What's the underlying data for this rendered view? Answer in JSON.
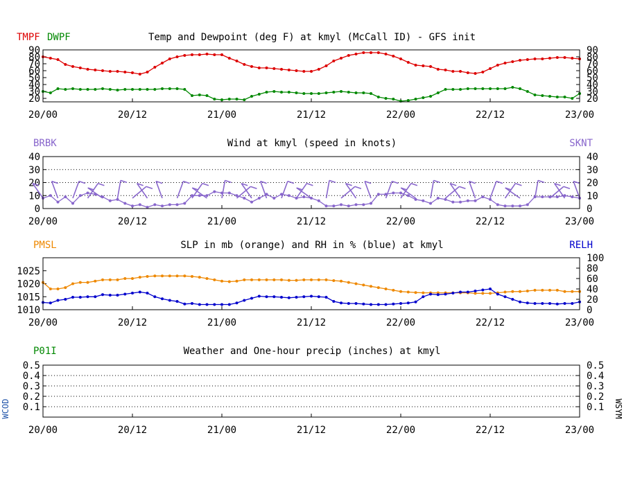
{
  "colors": {
    "tmpf": "#dd0000",
    "dwpf": "#008800",
    "wind": "#8866cc",
    "pmsl": "#ee8800",
    "relh": "#0000cc",
    "p01i": "#008800",
    "wcod": "#2255aa",
    "grid": "#000000"
  },
  "chart_data": [
    {
      "type": "line",
      "title": "Temp and Dewpoint (deg F) at kmyl  (McCall ID) - GFS init",
      "left_label_1": "TMPF",
      "left_label_2": "DWPF",
      "ylim": [
        15,
        90
      ],
      "yticks": [
        "20",
        "30",
        "40",
        "50",
        "60",
        "70",
        "80",
        "90"
      ],
      "xlim": [
        0,
        72
      ],
      "xticks": [
        "20/00",
        "20/12",
        "21/00",
        "21/12",
        "22/00",
        "22/12",
        "23/00"
      ],
      "x_hours": [
        0,
        1,
        2,
        3,
        4,
        5,
        6,
        7,
        8,
        9,
        10,
        11,
        12,
        13,
        14,
        15,
        16,
        17,
        18,
        19,
        20,
        21,
        22,
        23,
        24,
        25,
        26,
        27,
        28,
        29,
        30,
        31,
        32,
        33,
        34,
        35,
        36,
        37,
        38,
        39,
        40,
        41,
        42,
        43,
        44,
        45,
        46,
        47,
        48,
        49,
        50,
        51,
        52,
        53,
        54,
        55,
        56,
        57,
        58,
        59,
        60,
        61,
        62,
        63,
        64,
        65,
        66,
        67,
        68,
        69,
        70,
        71,
        72
      ],
      "series": [
        {
          "name": "TMPF",
          "values": [
            80,
            78,
            76,
            69,
            66,
            64,
            62,
            61,
            60,
            59,
            59,
            58,
            57,
            55,
            58,
            65,
            71,
            77,
            80,
            82,
            83,
            83,
            84,
            83,
            83,
            78,
            74,
            69,
            66,
            64,
            64,
            63,
            62,
            61,
            60,
            59,
            59,
            62,
            67,
            74,
            78,
            82,
            84,
            86,
            86,
            86,
            84,
            81,
            77,
            72,
            68,
            67,
            66,
            62,
            61,
            59,
            59,
            57,
            56,
            58,
            63,
            68,
            71,
            73,
            75,
            76,
            77,
            77,
            78,
            79,
            79,
            78,
            77
          ]
        },
        {
          "name": "DWPF",
          "values": [
            30,
            28,
            34,
            33,
            34,
            33,
            33,
            33,
            34,
            33,
            32,
            33,
            33,
            33,
            33,
            33,
            34,
            34,
            34,
            33,
            24,
            25,
            24,
            19,
            18,
            19,
            19,
            18,
            23,
            26,
            29,
            30,
            29,
            29,
            28,
            27,
            27,
            27,
            28,
            29,
            30,
            29,
            28,
            28,
            27,
            22,
            20,
            19,
            16,
            17,
            19,
            21,
            23,
            28,
            33,
            33,
            33,
            34,
            34,
            34,
            34,
            34,
            34,
            36,
            34,
            30,
            25,
            24,
            23,
            22,
            22,
            20,
            27
          ]
        }
      ]
    },
    {
      "type": "line",
      "title": "Wind at  kmyl  (speed in knots)",
      "left_label": "BRBK",
      "right_label": "SKNT",
      "ylim": [
        0,
        40
      ],
      "yticks": [
        "0",
        "10",
        "20",
        "30",
        "40"
      ],
      "xticks": [
        "20/00",
        "20/12",
        "21/00",
        "21/12",
        "22/00",
        "22/12",
        "23/00"
      ],
      "x_hours": [
        0,
        1,
        2,
        3,
        4,
        5,
        6,
        7,
        8,
        9,
        10,
        11,
        12,
        13,
        14,
        15,
        16,
        17,
        18,
        19,
        20,
        21,
        22,
        23,
        24,
        25,
        26,
        27,
        28,
        29,
        30,
        31,
        32,
        33,
        34,
        35,
        36,
        37,
        38,
        39,
        40,
        41,
        42,
        43,
        44,
        45,
        46,
        47,
        48,
        49,
        50,
        51,
        52,
        53,
        54,
        55,
        56,
        57,
        58,
        59,
        60,
        61,
        62,
        63,
        64,
        65,
        66,
        67,
        68,
        69,
        70,
        71,
        72
      ],
      "series": [
        {
          "name": "SKNT",
          "values": [
            8,
            10,
            5,
            9,
            4,
            10,
            12,
            11,
            9,
            6,
            7,
            4,
            2,
            3,
            1,
            3,
            2,
            3,
            3,
            4,
            10,
            10,
            10,
            13,
            12,
            12,
            10,
            8,
            5,
            8,
            11,
            8,
            11,
            10,
            8,
            9,
            8,
            6,
            2,
            2,
            3,
            2,
            3,
            3,
            4,
            11,
            11,
            12,
            12,
            10,
            7,
            6,
            4,
            8,
            7,
            5,
            5,
            6,
            6,
            9,
            7,
            3,
            2,
            2,
            2,
            3,
            9,
            9,
            9,
            9,
            10,
            9,
            8
          ]
        }
      ],
      "barbs_hours": [
        0,
        2,
        4,
        6,
        8,
        10,
        12,
        14,
        16,
        18,
        20,
        22,
        24,
        26,
        28,
        30,
        32,
        34,
        36,
        38,
        40,
        42,
        44,
        46,
        48,
        50,
        52,
        54,
        56,
        58,
        60,
        62,
        64,
        66,
        68,
        70,
        72
      ]
    },
    {
      "type": "line",
      "title": "SLP in mb (orange) and RH in % (blue) at  kmyl",
      "left_label": "PMSL",
      "right_label": "RELH",
      "ylim_left": [
        1010,
        1030
      ],
      "yticks_left": [
        "1010",
        "1015",
        "1020",
        "1025"
      ],
      "ylim_right": [
        0,
        100
      ],
      "yticks_right": [
        "0",
        "20",
        "40",
        "60",
        "80",
        "100"
      ],
      "xticks": [
        "20/00",
        "20/12",
        "21/00",
        "21/12",
        "22/00",
        "22/12",
        "23/00"
      ],
      "x_hours": [
        0,
        1,
        2,
        3,
        4,
        5,
        6,
        7,
        8,
        9,
        10,
        11,
        12,
        13,
        14,
        15,
        16,
        17,
        18,
        19,
        20,
        21,
        22,
        23,
        24,
        25,
        26,
        27,
        28,
        29,
        30,
        31,
        32,
        33,
        34,
        35,
        36,
        37,
        38,
        39,
        40,
        41,
        42,
        43,
        44,
        45,
        46,
        47,
        48,
        49,
        50,
        51,
        52,
        53,
        54,
        55,
        56,
        57,
        58,
        59,
        60,
        61,
        62,
        63,
        64,
        65,
        66,
        67,
        68,
        69,
        70,
        71,
        72
      ],
      "series": [
        {
          "name": "PMSL",
          "values": [
            1020.5,
            1018,
            1018,
            1018.5,
            1020,
            1020.5,
            1020.5,
            1021,
            1021.5,
            1021.5,
            1021.5,
            1022,
            1022,
            1022.5,
            1022.8,
            1023,
            1023,
            1023,
            1023,
            1023,
            1022.8,
            1022.5,
            1022,
            1021.5,
            1021,
            1020.8,
            1021,
            1021.5,
            1021.5,
            1021.5,
            1021.5,
            1021.5,
            1021.5,
            1021.3,
            1021.3,
            1021.5,
            1021.5,
            1021.5,
            1021.5,
            1021.2,
            1021,
            1020.5,
            1020,
            1019.5,
            1019,
            1018.5,
            1018,
            1017.5,
            1017,
            1016.8,
            1016.6,
            1016.5,
            1016.5,
            1016.5,
            1016.5,
            1016.5,
            1016.5,
            1016.5,
            1016.3,
            1016.3,
            1016.3,
            1016.5,
            1016.8,
            1017,
            1017,
            1017.2,
            1017.5,
            1017.5,
            1017.5,
            1017.5,
            1017,
            1017,
            1017
          ]
        },
        {
          "name": "RELH",
          "values": [
            14,
            13,
            18,
            20,
            24,
            24,
            25,
            25,
            29,
            28,
            28,
            30,
            32,
            34,
            32,
            25,
            21,
            18,
            16,
            11,
            12,
            10,
            10,
            10,
            10,
            10,
            13,
            18,
            22,
            26,
            25,
            25,
            24,
            23,
            24,
            25,
            26,
            25,
            24,
            16,
            13,
            12,
            12,
            11,
            10,
            10,
            10,
            11,
            12,
            13,
            15,
            25,
            30,
            29,
            30,
            32,
            34,
            34,
            36,
            38,
            40,
            30,
            25,
            20,
            15,
            13,
            12,
            12,
            12,
            11,
            12,
            12,
            15
          ]
        }
      ]
    },
    {
      "type": "line",
      "title": "Weather and One-hour precip (inches) at  kmyl",
      "left_label": "P01I",
      "left_vertical_label": "WCOD",
      "right_vertical_label": "WSYM",
      "ylim": [
        0,
        0.5
      ],
      "yticks": [
        "0.1",
        "0.2",
        "0.3",
        "0.4",
        "0.5"
      ],
      "xticks": [
        "20/00",
        "20/12",
        "21/00",
        "21/12",
        "22/00",
        "22/12",
        "23/00"
      ],
      "series": [
        {
          "name": "P01I",
          "values": []
        }
      ]
    }
  ]
}
